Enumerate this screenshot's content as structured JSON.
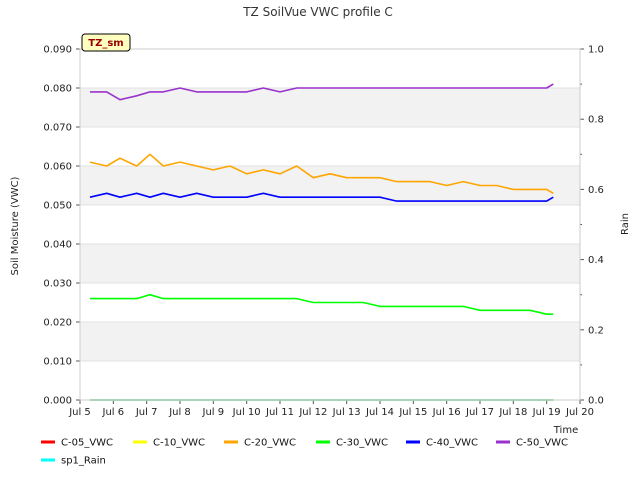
{
  "chart_data": {
    "type": "line",
    "title": "TZ SoilVue VWC profile C",
    "station_badge": "TZ_sm",
    "xlabel": "Time",
    "ylabel": "Soil Moisture (VWC)",
    "y2label": "Rain",
    "x_ticks": [
      "Jul 5",
      "Jul 6",
      "Jul 7",
      "Jul 8",
      "Jul 9",
      "Jul 10",
      "Jul 11",
      "Jul 12",
      "Jul 13",
      "Jul 14",
      "Jul 15",
      "Jul 16",
      "Jul 17",
      "Jul 18",
      "Jul 19",
      "Jul 20"
    ],
    "x_range": [
      "Jul 5",
      "Jul 20"
    ],
    "ylim": [
      0,
      0.09
    ],
    "y_ticks": [
      "0.000",
      "0.010",
      "0.020",
      "0.030",
      "0.040",
      "0.050",
      "0.060",
      "0.070",
      "0.080",
      "0.090"
    ],
    "y2lim": [
      0,
      1.0
    ],
    "y2_ticks": [
      "0.0",
      "0.2",
      "0.4",
      "0.6",
      "0.8",
      "1.0"
    ],
    "grid": "horizontal bands",
    "legend_position": "bottom",
    "series": [
      {
        "name": "C-05_VWC",
        "color": "#ff0000",
        "axis": "left",
        "x": [
          5.3,
          19.2
        ],
        "y": [
          0.0,
          0.0
        ]
      },
      {
        "name": "C-10_VWC",
        "color": "#ffff00",
        "axis": "left",
        "x": [
          5.3,
          19.2
        ],
        "y": [
          0.0,
          0.0
        ]
      },
      {
        "name": "C-20_VWC",
        "color": "#ffa500",
        "axis": "left",
        "x": [
          5.3,
          5.8,
          6.2,
          6.7,
          7.1,
          7.5,
          8.0,
          8.5,
          9.0,
          9.5,
          10.0,
          10.5,
          11.0,
          11.5,
          12.0,
          12.5,
          13.0,
          13.5,
          14.0,
          14.5,
          15.0,
          15.5,
          16.0,
          16.5,
          17.0,
          17.5,
          18.0,
          18.5,
          19.0,
          19.2
        ],
        "y": [
          0.061,
          0.06,
          0.062,
          0.06,
          0.063,
          0.06,
          0.061,
          0.06,
          0.059,
          0.06,
          0.058,
          0.059,
          0.058,
          0.06,
          0.057,
          0.058,
          0.057,
          0.057,
          0.057,
          0.056,
          0.056,
          0.056,
          0.055,
          0.056,
          0.055,
          0.055,
          0.054,
          0.054,
          0.054,
          0.053
        ]
      },
      {
        "name": "C-30_VWC",
        "color": "#00ff00",
        "axis": "left",
        "x": [
          5.3,
          5.8,
          6.2,
          6.7,
          7.1,
          7.5,
          8.0,
          8.5,
          9.0,
          9.5,
          10.0,
          10.5,
          11.0,
          11.5,
          12.0,
          12.5,
          13.0,
          13.5,
          14.0,
          14.5,
          15.0,
          15.5,
          16.0,
          16.5,
          17.0,
          17.5,
          18.0,
          18.5,
          19.0,
          19.2
        ],
        "y": [
          0.026,
          0.026,
          0.026,
          0.026,
          0.027,
          0.026,
          0.026,
          0.026,
          0.026,
          0.026,
          0.026,
          0.026,
          0.026,
          0.026,
          0.025,
          0.025,
          0.025,
          0.025,
          0.024,
          0.024,
          0.024,
          0.024,
          0.024,
          0.024,
          0.023,
          0.023,
          0.023,
          0.023,
          0.022,
          0.022
        ]
      },
      {
        "name": "C-40_VWC",
        "color": "#0000ff",
        "axis": "left",
        "x": [
          5.3,
          5.8,
          6.2,
          6.7,
          7.1,
          7.5,
          8.0,
          8.5,
          9.0,
          9.5,
          10.0,
          10.5,
          11.0,
          11.5,
          12.0,
          12.5,
          13.0,
          13.5,
          14.0,
          14.5,
          15.0,
          15.5,
          16.0,
          16.5,
          17.0,
          17.5,
          18.0,
          18.5,
          19.0,
          19.2
        ],
        "y": [
          0.052,
          0.053,
          0.052,
          0.053,
          0.052,
          0.053,
          0.052,
          0.053,
          0.052,
          0.052,
          0.052,
          0.053,
          0.052,
          0.052,
          0.052,
          0.052,
          0.052,
          0.052,
          0.052,
          0.051,
          0.051,
          0.051,
          0.051,
          0.051,
          0.051,
          0.051,
          0.051,
          0.051,
          0.051,
          0.052
        ]
      },
      {
        "name": "C-50_VWC",
        "color": "#9932cc",
        "axis": "left",
        "x": [
          5.3,
          5.8,
          6.2,
          6.7,
          7.1,
          7.5,
          8.0,
          8.5,
          9.0,
          9.5,
          10.0,
          10.5,
          11.0,
          11.5,
          12.0,
          12.5,
          13.0,
          13.5,
          14.0,
          14.5,
          15.0,
          15.5,
          16.0,
          16.5,
          17.0,
          17.5,
          18.0,
          18.5,
          19.0,
          19.2
        ],
        "y": [
          0.079,
          0.079,
          0.077,
          0.078,
          0.079,
          0.079,
          0.08,
          0.079,
          0.079,
          0.079,
          0.079,
          0.08,
          0.079,
          0.08,
          0.08,
          0.08,
          0.08,
          0.08,
          0.08,
          0.08,
          0.08,
          0.08,
          0.08,
          0.08,
          0.08,
          0.08,
          0.08,
          0.08,
          0.08,
          0.081
        ]
      },
      {
        "name": "sp1_Rain",
        "color": "#00ffff",
        "axis": "right",
        "x": [
          5.3,
          19.2
        ],
        "y": [
          0.0,
          0.0
        ]
      }
    ]
  }
}
